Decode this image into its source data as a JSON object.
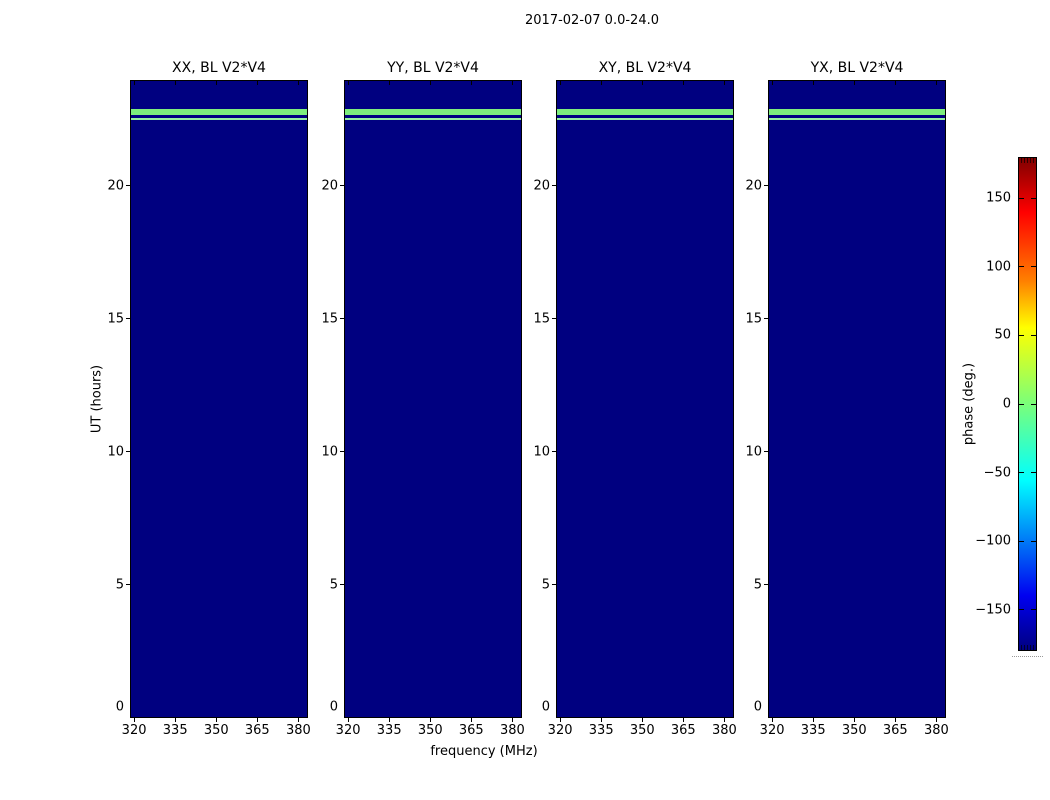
{
  "title": "2017-02-07 0.0-24.0",
  "chart_data": {
    "type": "heatmap",
    "description": "Four waterfall (dynamic spectrum) panels of interferometric visibility phase vs UT and frequency; background uniform at about -180 deg (dark navy, jet colormap) with one bright greenish horizontal stripe near UT 22.8 h and a thinner line near UT 22.55 h in all four panels.",
    "panels": [
      {
        "code": "XX",
        "title": "XX, BL V2*V4"
      },
      {
        "code": "YY",
        "title": "YY, BL V2*V4"
      },
      {
        "code": "XY",
        "title": "XY, BL V2*V4"
      },
      {
        "code": "YX",
        "title": "YX, BL V2*V4"
      }
    ],
    "x_axis": {
      "label": "frequency (MHz)",
      "ticks": [
        320,
        335,
        350,
        365,
        380
      ],
      "range": [
        318.5,
        383.5
      ]
    },
    "y_axis": {
      "label": "UT (hours)",
      "ticks": [
        0,
        5,
        10,
        15,
        20
      ],
      "range": [
        0,
        24
      ]
    },
    "colorbar": {
      "label": "phase (deg.)",
      "range": [
        -180,
        180
      ],
      "colormap": "jet",
      "ticks": [
        {
          "value": 150,
          "label": "150"
        },
        {
          "value": 100,
          "label": "100"
        },
        {
          "value": 50,
          "label": "50"
        },
        {
          "value": 0,
          "label": "0"
        },
        {
          "value": -50,
          "label": "−50"
        },
        {
          "value": -100,
          "label": "−100"
        },
        {
          "value": -150,
          "label": "−150"
        }
      ]
    },
    "background_phase_deg": -180,
    "features": [
      {
        "name": "bright-stripe",
        "ut_start_hours": 22.72,
        "ut_end_hours": 22.95,
        "phase_deg": 15,
        "color": "#7dee7d"
      },
      {
        "name": "thin-stripe",
        "ut_start_hours": 22.52,
        "ut_end_hours": 22.6,
        "phase_deg": 25,
        "color": "#97f0a2"
      }
    ]
  },
  "colors": {
    "background_fill": "#000080",
    "figure_background": "#ffffff",
    "axis_color": "#000000"
  }
}
